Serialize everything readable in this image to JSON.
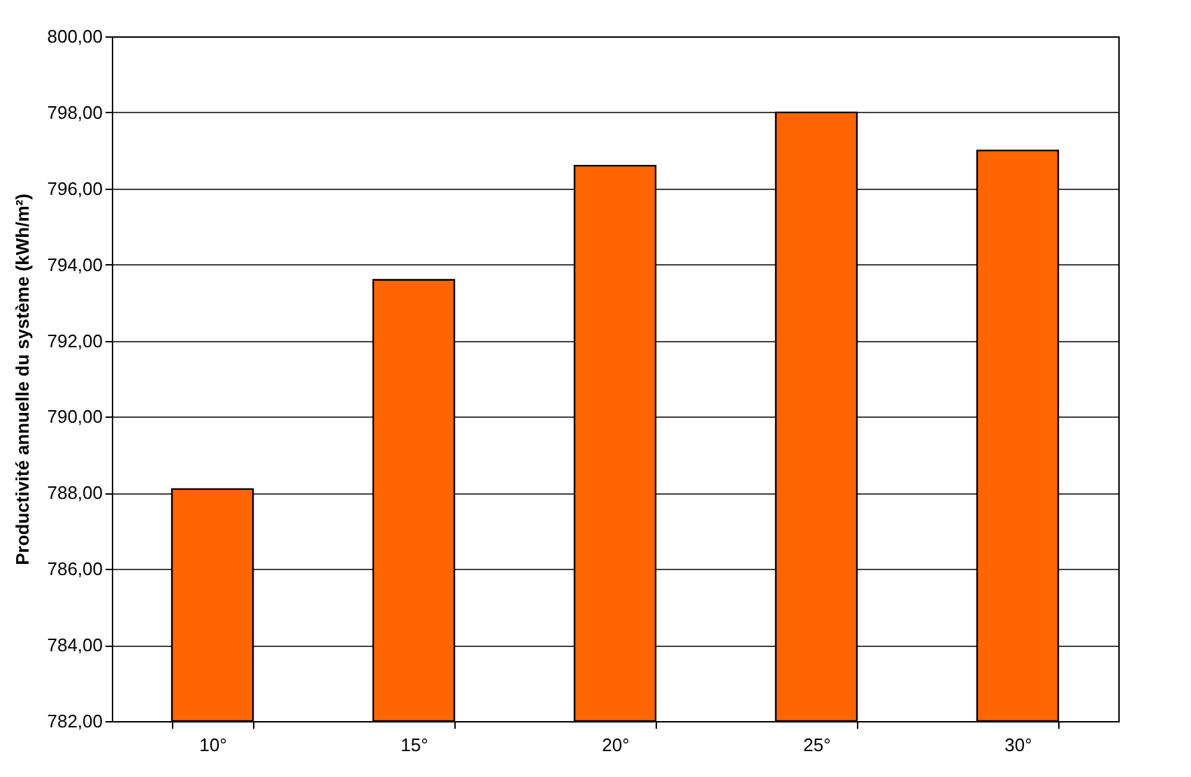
{
  "chart_data": {
    "type": "bar",
    "ylabel": "Productivité annuelle du système (kWh/m²)",
    "categories": [
      "10°",
      "15°",
      "20°",
      "25°",
      "30°"
    ],
    "values": [
      788.1,
      793.6,
      796.6,
      798.0,
      797.0
    ],
    "color": "#ff6600",
    "ylim": [
      782,
      800
    ],
    "yticks": [
      {
        "value": 782,
        "label": "782,00"
      },
      {
        "value": 784,
        "label": "784,00"
      },
      {
        "value": 786,
        "label": "786,00"
      },
      {
        "value": 788,
        "label": "788,00"
      },
      {
        "value": 790,
        "label": "790,00"
      },
      {
        "value": 792,
        "label": "792,00"
      },
      {
        "value": 794,
        "label": "794,00"
      },
      {
        "value": 796,
        "label": "796,00"
      },
      {
        "value": 798,
        "label": "798,00"
      },
      {
        "value": 800,
        "label": "800,00"
      }
    ],
    "grid": "y"
  }
}
